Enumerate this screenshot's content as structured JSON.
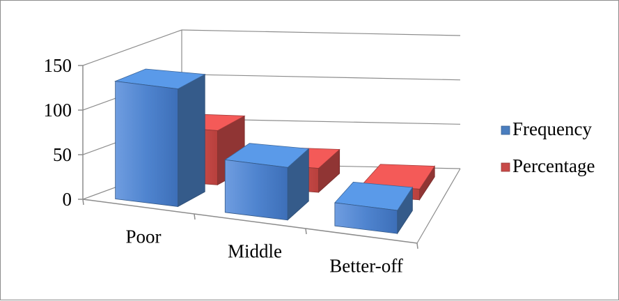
{
  "chart_data": {
    "type": "bar",
    "categories": [
      "Poor",
      "Middle",
      "Better-off"
    ],
    "series": [
      {
        "name": "Frequency",
        "values": [
          132,
          59,
          26
        ],
        "color": "#4a7ebf"
      },
      {
        "name": "Percentage",
        "values": [
          61,
          27,
          12
        ],
        "color": "#c84a48"
      }
    ],
    "ylim": [
      0,
      150
    ],
    "yticks": [
      "0",
      "50",
      "100",
      "150"
    ],
    "grid": true,
    "legend_position": "right",
    "style": "3d-perspective"
  }
}
